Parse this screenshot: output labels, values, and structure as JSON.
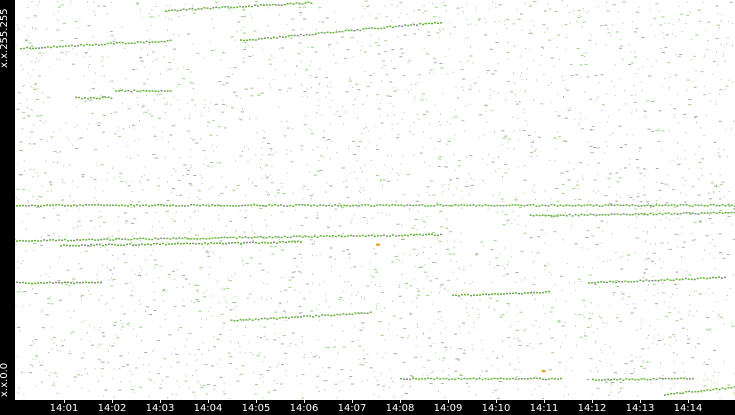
{
  "chart_data": {
    "type": "scatter",
    "title": "",
    "xlabel": "",
    "ylabel": "",
    "y_labels": {
      "bottom": "x.x.0.0",
      "top": "x.x.255.255"
    },
    "ylim": [
      0,
      65535
    ],
    "xlim": [
      "14:00:20",
      "14:14:57"
    ],
    "x_ticks": [
      "14:01",
      "14:02",
      "14:03",
      "14:04",
      "14:05",
      "14:06",
      "14:07",
      "14:08",
      "14:09",
      "14:10",
      "14:11",
      "14:12",
      "14:13",
      "14:14"
    ],
    "grid": false,
    "colors": {
      "point": "#9ad585",
      "trace": "#63b735",
      "gray": "#a8a8a8",
      "highlight": "#e8a000",
      "axis_bg": "#000000"
    },
    "traces": [
      {
        "start": "14:03:06",
        "end": "14:06:08",
        "y_start": 63900,
        "y_end": 65200
      },
      {
        "start": "14:00:05",
        "end": "14:03:12",
        "y_start": 57700,
        "y_end": 59000
      },
      {
        "start": "14:04:40",
        "end": "14:08:50",
        "y_start": 59000,
        "y_end": 62000
      },
      {
        "start": "14:01:14",
        "end": "14:01:58",
        "y_start": 49600,
        "y_end": 49600
      },
      {
        "start": "14:02:04",
        "end": "14:03:12",
        "y_start": 50800,
        "y_end": 50800
      },
      {
        "start": "14:00:00",
        "end": "14:14:57",
        "y_start": 32000,
        "y_end": 32000
      },
      {
        "start": "14:10:42",
        "end": "14:14:57",
        "y_start": 30300,
        "y_end": 30800
      },
      {
        "start": "14:00:00",
        "end": "14:08:50",
        "y_start": 26200,
        "y_end": 27200
      },
      {
        "start": "14:00:55",
        "end": "14:05:55",
        "y_start": 25400,
        "y_end": 26000
      },
      {
        "start": "14:00:00",
        "end": "14:01:45",
        "y_start": 19300,
        "y_end": 19300
      },
      {
        "start": "14:11:55",
        "end": "14:14:45",
        "y_start": 19300,
        "y_end": 20200
      },
      {
        "start": "14:09:05",
        "end": "14:11:05",
        "y_start": 17200,
        "y_end": 17800
      },
      {
        "start": "14:04:28",
        "end": "14:07:22",
        "y_start": 13100,
        "y_end": 14400
      },
      {
        "start": "14:08:00",
        "end": "14:11:20",
        "y_start": 3600,
        "y_end": 3600
      },
      {
        "start": "14:12:00",
        "end": "14:14:05",
        "y_start": 3400,
        "y_end": 3700
      },
      {
        "start": "14:13:30",
        "end": "14:14:57",
        "y_start": 1000,
        "y_end": 2200
      }
    ],
    "highlight_points": [
      {
        "t": "14:07:30",
        "y": 25600
      },
      {
        "t": "14:10:57",
        "y": 4900
      }
    ]
  }
}
